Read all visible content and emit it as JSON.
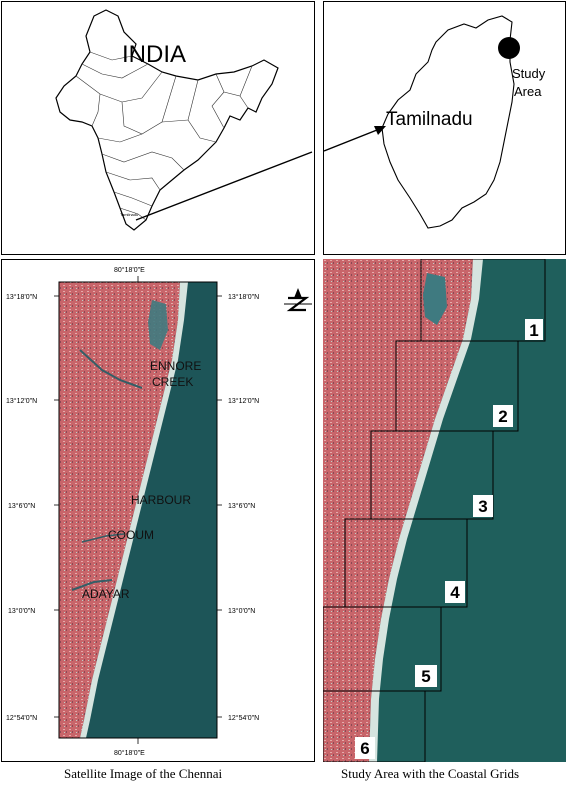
{
  "india_panel": {
    "title": "INDIA",
    "state_label": "Tamilnadu"
  },
  "tamilnadu_panel": {
    "title": "Tamilnadu",
    "marker_label_line1": "Study",
    "marker_label_line2": "Area"
  },
  "satellite_panel": {
    "top_longitude": "80°18'0\"E",
    "bottom_longitude": "80°18'0\"E",
    "latitudes": [
      "13°18'0\"N",
      "13°12'0\"N",
      "13°6'0\"N",
      "13°0'0\"N",
      "12°54'0\"N"
    ],
    "places": {
      "ennore_line1": "ENNORE",
      "ennore_line2": "CREEK",
      "harbour": "HARBOUR",
      "cooum": "COOUM",
      "adayar": "ADAYAR"
    },
    "caption": "Satellite Image of the Chennai"
  },
  "grid_panel": {
    "grid_labels": [
      "1",
      "2",
      "3",
      "4",
      "5",
      "6"
    ],
    "caption": "Study Area with the Coastal Grids"
  },
  "colors": {
    "land": "#c96b6e",
    "sea": "#1f5c5a",
    "coast": "#d8e6e0"
  }
}
